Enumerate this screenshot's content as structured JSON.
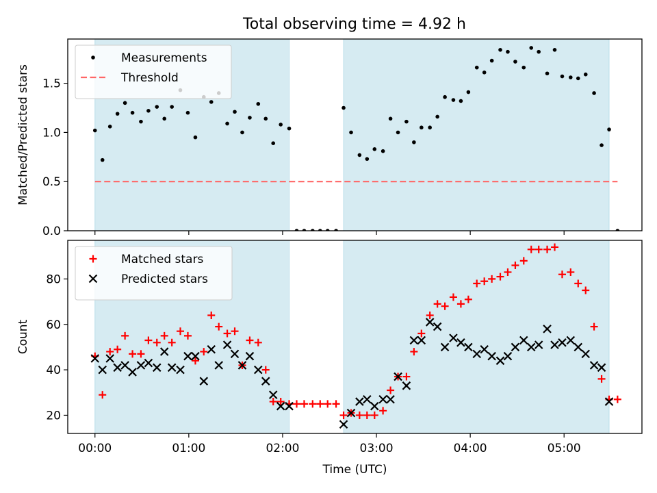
{
  "figure_title": "Total observing time = 4.92 h",
  "x_ticks": [
    "00:00",
    "01:00",
    "02:00",
    "03:00",
    "04:00",
    "05:00"
  ],
  "colors": {
    "shade": "#add8e6",
    "threshold": "#ff6666",
    "measurement": "#000000",
    "matched": "#ff0000",
    "predicted": "#000000"
  },
  "chart_data": [
    {
      "type": "scatter",
      "panel": "top",
      "ylabel": "Matched/Predicted stars",
      "ylim": [
        0,
        1.95
      ],
      "yticks": [
        "0.0",
        "0.5",
        "1.0",
        "1.5"
      ],
      "xlim": [
        -0.29,
        5.83
      ],
      "x_unit": "hours (UTC)",
      "grid": false,
      "legend_position": "upper-left",
      "shaded_intervals": [
        [
          0.0,
          2.07
        ],
        [
          2.65,
          5.48
        ]
      ],
      "series": [
        {
          "name": "Measurements",
          "marker": "dot",
          "x": [
            0.0,
            0.08,
            0.16,
            0.24,
            0.32,
            0.4,
            0.49,
            0.57,
            0.66,
            0.74,
            0.82,
            0.91,
            0.99,
            1.07,
            1.16,
            1.24,
            1.32,
            1.41,
            1.49,
            1.57,
            1.65,
            1.74,
            1.82,
            1.9,
            1.98,
            2.07,
            2.15,
            2.23,
            2.32,
            2.4,
            2.48,
            2.57,
            2.65,
            2.73,
            2.82,
            2.9,
            2.98,
            3.07,
            3.15,
            3.23,
            3.32,
            3.4,
            3.48,
            3.57,
            3.65,
            3.73,
            3.82,
            3.9,
            3.98,
            4.07,
            4.15,
            4.23,
            4.32,
            4.4,
            4.48,
            4.57,
            4.65,
            4.73,
            4.82,
            4.9,
            4.98,
            5.07,
            5.15,
            5.23,
            5.32,
            5.4,
            5.48,
            5.57
          ],
          "y": [
            1.02,
            0.72,
            1.06,
            1.19,
            1.3,
            1.2,
            1.11,
            1.22,
            1.26,
            1.14,
            1.26,
            1.43,
            1.2,
            0.95,
            1.36,
            1.31,
            1.4,
            1.09,
            1.21,
            1.0,
            1.15,
            1.29,
            1.14,
            0.89,
            1.08,
            1.04,
            0.0,
            0.0,
            0.0,
            0.0,
            0.0,
            0.0,
            1.25,
            1.0,
            0.77,
            0.73,
            0.83,
            0.81,
            1.14,
            1.0,
            1.11,
            0.9,
            1.05,
            1.05,
            1.16,
            1.36,
            1.33,
            1.32,
            1.41,
            1.66,
            1.61,
            1.73,
            1.84,
            1.82,
            1.72,
            1.66,
            1.86,
            1.82,
            1.6,
            1.84,
            1.57,
            1.56,
            1.55,
            1.59,
            1.4,
            0.87,
            1.03,
            0.0
          ]
        },
        {
          "name": "Threshold",
          "style": "dashed",
          "x": [
            0.0,
            5.57
          ],
          "y": [
            0.5,
            0.5
          ]
        }
      ]
    },
    {
      "type": "scatter",
      "panel": "bottom",
      "xlabel": "Time (UTC)",
      "ylabel": "Count",
      "ylim": [
        12,
        97
      ],
      "yticks": [
        "20",
        "40",
        "60",
        "80"
      ],
      "xlim": [
        -0.29,
        5.83
      ],
      "grid": false,
      "legend_position": "upper-left",
      "shaded_intervals": [
        [
          0.0,
          2.07
        ],
        [
          2.65,
          5.48
        ]
      ],
      "series": [
        {
          "name": "Matched stars",
          "marker": "plus",
          "x": [
            0.0,
            0.08,
            0.16,
            0.24,
            0.32,
            0.4,
            0.49,
            0.57,
            0.66,
            0.74,
            0.82,
            0.91,
            0.99,
            1.07,
            1.16,
            1.24,
            1.32,
            1.41,
            1.49,
            1.57,
            1.65,
            1.74,
            1.82,
            1.9,
            1.98,
            2.07,
            2.15,
            2.23,
            2.32,
            2.4,
            2.48,
            2.57,
            2.65,
            2.73,
            2.82,
            2.9,
            2.98,
            3.07,
            3.15,
            3.23,
            3.32,
            3.4,
            3.48,
            3.57,
            3.65,
            3.73,
            3.82,
            3.9,
            3.98,
            4.07,
            4.15,
            4.23,
            4.32,
            4.4,
            4.48,
            4.57,
            4.65,
            4.73,
            4.82,
            4.9,
            4.98,
            5.07,
            5.15,
            5.23,
            5.32,
            5.4,
            5.48,
            5.57
          ],
          "y": [
            46,
            29,
            48,
            49,
            55,
            47,
            47,
            53,
            52,
            55,
            52,
            57,
            55,
            44,
            48,
            64,
            59,
            56,
            57,
            42,
            53,
            52,
            40,
            26,
            26,
            25,
            25,
            25,
            25,
            25,
            25,
            25,
            20,
            21,
            20,
            20,
            20,
            22,
            31,
            37,
            37,
            48,
            56,
            64,
            69,
            68,
            72,
            69,
            71,
            78,
            79,
            80,
            81,
            83,
            86,
            88,
            93,
            93,
            93,
            94,
            82,
            83,
            78,
            75,
            59,
            36,
            27,
            27
          ]
        },
        {
          "name": "Predicted stars",
          "marker": "x",
          "x": [
            0.0,
            0.08,
            0.16,
            0.24,
            0.32,
            0.4,
            0.49,
            0.57,
            0.66,
            0.74,
            0.82,
            0.91,
            0.99,
            1.07,
            1.16,
            1.24,
            1.32,
            1.41,
            1.49,
            1.57,
            1.65,
            1.74,
            1.82,
            1.9,
            1.98,
            2.07,
            2.65,
            2.73,
            2.82,
            2.9,
            2.98,
            3.07,
            3.15,
            3.23,
            3.32,
            3.4,
            3.48,
            3.57,
            3.65,
            3.73,
            3.82,
            3.9,
            3.98,
            4.07,
            4.15,
            4.23,
            4.32,
            4.4,
            4.48,
            4.57,
            4.65,
            4.73,
            4.82,
            4.9,
            4.98,
            5.07,
            5.15,
            5.23,
            5.32,
            5.4,
            5.48
          ],
          "y": [
            45,
            40,
            45,
            41,
            42,
            39,
            42,
            43,
            41,
            48,
            41,
            40,
            46,
            46,
            35,
            49,
            42,
            51,
            47,
            42,
            46,
            40,
            35,
            29,
            24,
            24,
            16,
            21,
            26,
            27,
            24,
            27,
            27,
            37,
            33,
            53,
            53,
            61,
            59,
            50,
            54,
            52,
            50,
            47,
            49,
            46,
            44,
            46,
            50,
            53,
            50,
            51,
            58,
            51,
            52,
            53,
            50,
            47,
            42,
            41,
            26
          ]
        }
      ]
    }
  ]
}
